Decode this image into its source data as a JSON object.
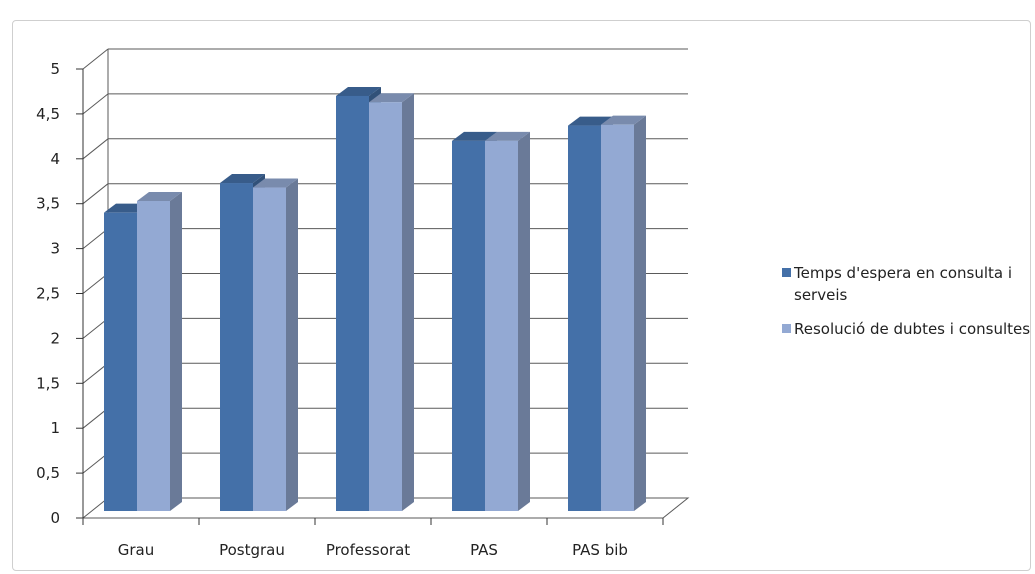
{
  "chart_data": {
    "type": "bar",
    "subtype": "3d-clustered-column",
    "title": "",
    "xlabel": "",
    "ylabel": "",
    "categories": [
      "Grau",
      "Postgrau",
      "Professorat",
      "PAS",
      "PAS bib"
    ],
    "series": [
      {
        "name": "Temps d'espera en consulta i serveis",
        "color": "#4470A8",
        "values": [
          3.4,
          3.73,
          4.7,
          4.2,
          4.37
        ]
      },
      {
        "name": "Resolució de dubtes i consultes",
        "color": "#93A9D3",
        "values": [
          3.53,
          3.68,
          4.63,
          4.2,
          4.38
        ]
      }
    ],
    "ylim": [
      0,
      5
    ],
    "yticks": [
      "0",
      "0,5",
      "1",
      "1,5",
      "2",
      "2,5",
      "3",
      "3,5",
      "4",
      "4,5",
      "5"
    ],
    "ytick_values": [
      0,
      0.5,
      1,
      1.5,
      2,
      2.5,
      3,
      3.5,
      4,
      4.5,
      5
    ],
    "grid": true,
    "legend_position": "right"
  }
}
